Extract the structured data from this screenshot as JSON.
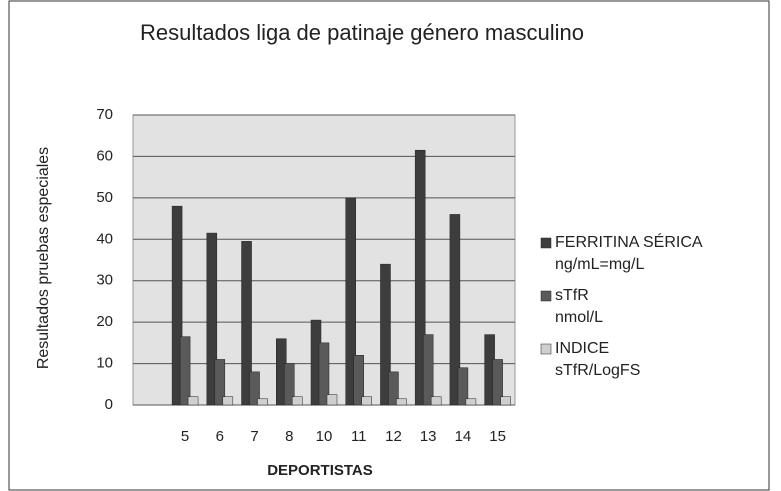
{
  "chart_data": {
    "type": "bar",
    "title": "Resultados liga de patinaje género masculino",
    "x_label": "DEPORTISTAS",
    "y_label": "Resultados pruebas especiales",
    "categories": [
      null,
      "5",
      "6",
      "7",
      "8",
      "10",
      "11",
      "12",
      "13",
      "14",
      "15"
    ],
    "series": [
      {
        "name": "FERRITINA SÉRICA\nng/mL=mg/L",
        "color": "#3d3d3d",
        "values": [
          null,
          48,
          41.5,
          39.5,
          16,
          20.5,
          50,
          34,
          61.5,
          46,
          17
        ]
      },
      {
        "name": "sTfR\nnmol/L",
        "color": "#5a5a5a",
        "values": [
          null,
          16.5,
          11,
          8,
          10,
          15,
          12,
          8,
          17,
          9,
          11
        ]
      },
      {
        "name": "INDICE\nsTfR/LogFS",
        "color": "#cfcfcf",
        "values": [
          null,
          2,
          2,
          1.5,
          2,
          2.5,
          2,
          1.5,
          2,
          1.5,
          2
        ]
      }
    ],
    "ylim": [
      0,
      70
    ],
    "yticks": [
      0,
      10,
      20,
      30,
      40,
      50,
      60,
      70
    ],
    "grid": true,
    "legend": "right"
  }
}
